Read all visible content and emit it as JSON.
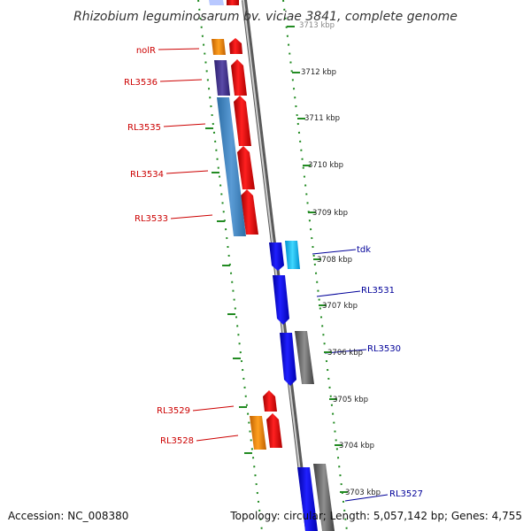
{
  "title": "Rhizobium leguminosarum bv. viciae 3841, complete genome",
  "footer": {
    "accession": "Accession: NC_008380",
    "summary": "Topology: circular; Length: 5,057,142 bp; Genes: 4,755"
  },
  "tick_labels": [
    "3713 kbp",
    "3712 kbp",
    "3711 kbp",
    "3710 kbp",
    "3709 kbp",
    "3708 kbp",
    "3707 kbp",
    "3706 kbp",
    "3705 kbp",
    "3704 kbp",
    "3703 kbp"
  ],
  "gene_labels": [
    {
      "text": "nolR",
      "side": "left"
    },
    {
      "text": "RL3536",
      "side": "left"
    },
    {
      "text": "RL3535",
      "side": "left"
    },
    {
      "text": "RL3534",
      "side": "left"
    },
    {
      "text": "RL3533",
      "side": "left"
    },
    {
      "text": "tdk",
      "side": "right"
    },
    {
      "text": "RL3531",
      "side": "right"
    },
    {
      "text": "RL3530",
      "side": "right"
    },
    {
      "text": "RL3529",
      "side": "left"
    },
    {
      "text": "RL3528",
      "side": "left"
    },
    {
      "text": "RL3527",
      "side": "right"
    }
  ],
  "colors": {
    "forward_strand": "#ff0000",
    "reverse_strand": "#0000ff",
    "backbone": "#888888",
    "ruler": "#228b22",
    "label_left": "#cc0000",
    "label_right": "#000099"
  }
}
